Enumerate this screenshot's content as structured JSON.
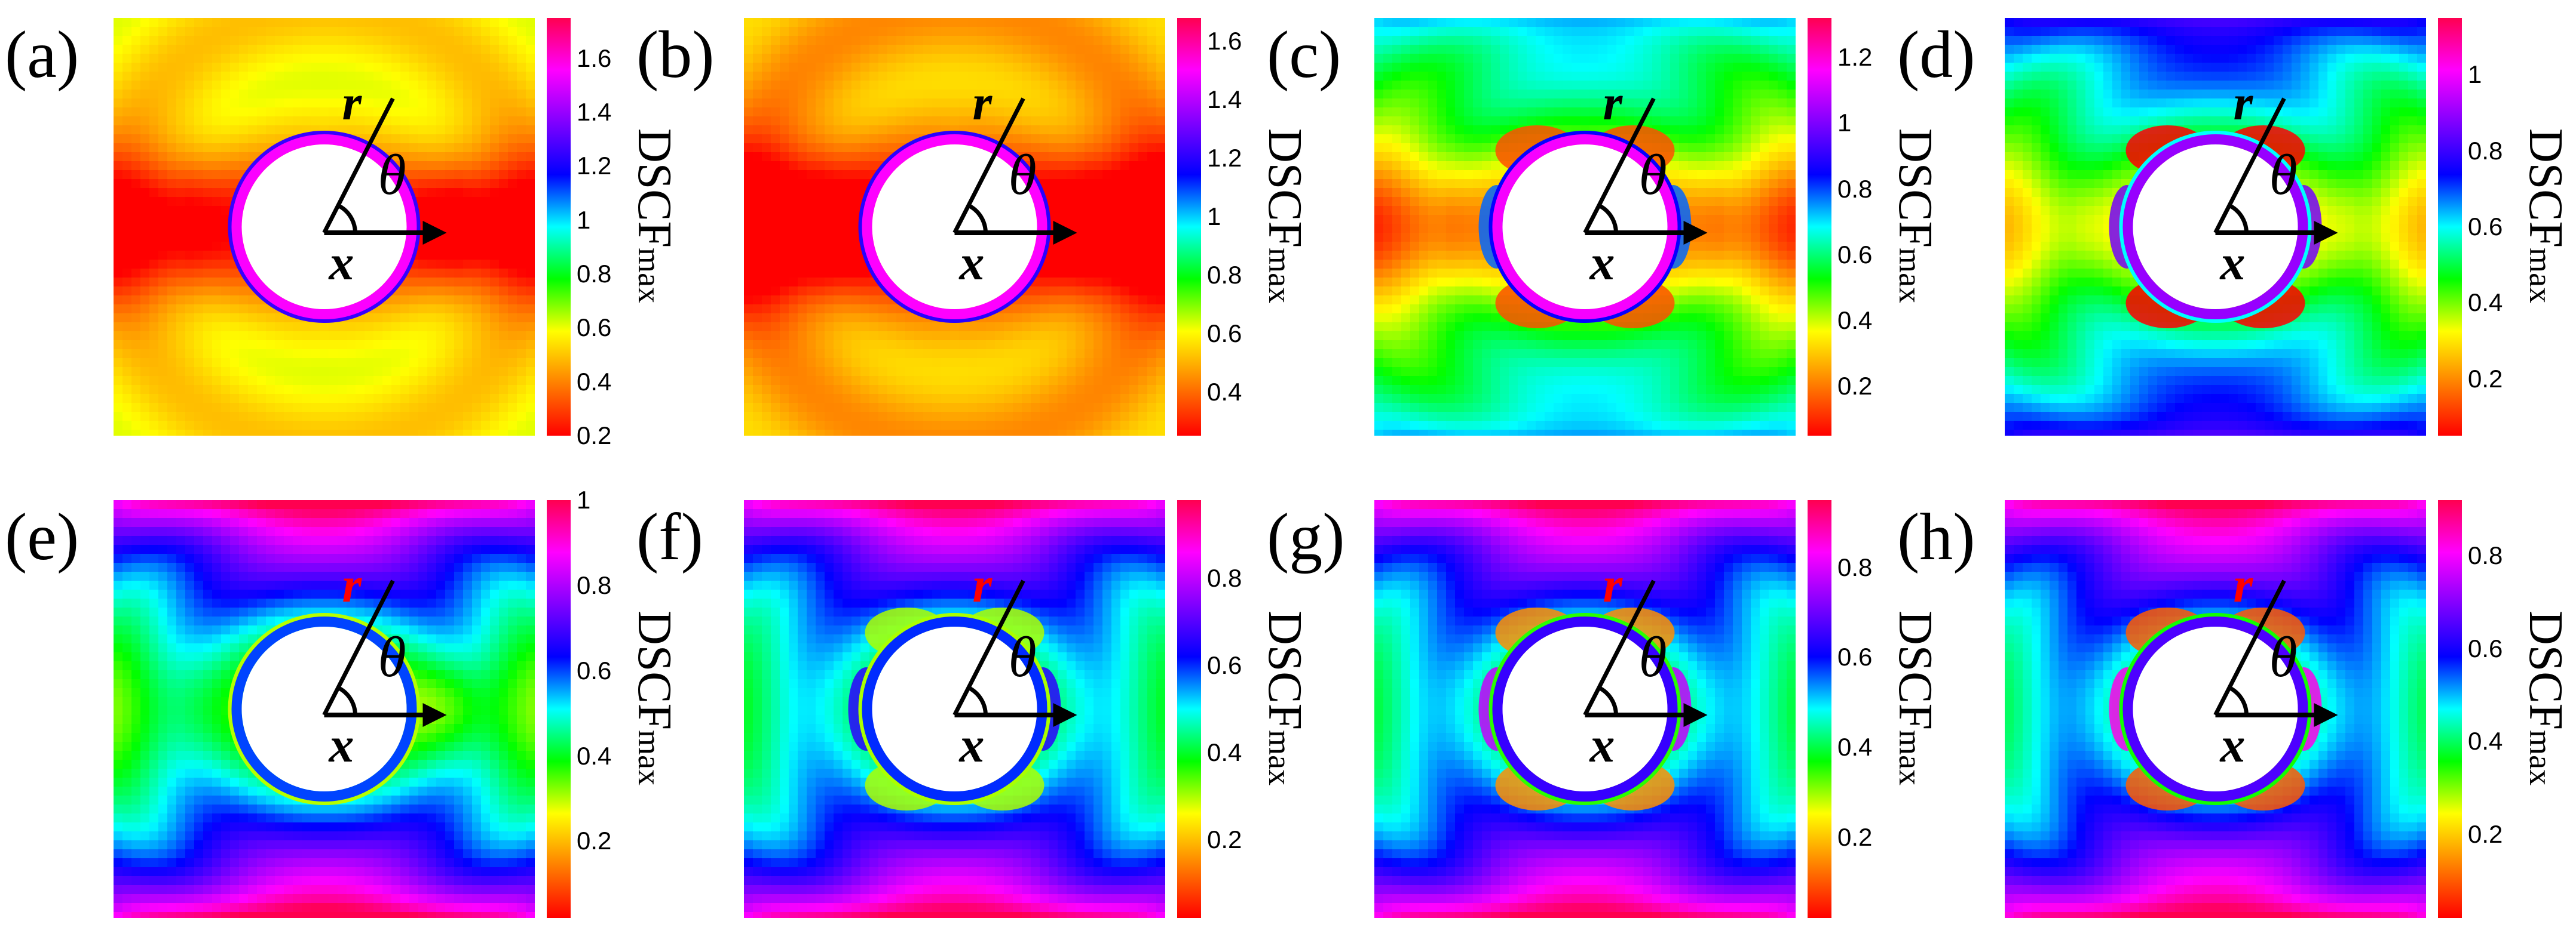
{
  "colors": {
    "colormap": [
      "#ff0000",
      "#ff7f00",
      "#ffff00",
      "#00ff00",
      "#00ffff",
      "#0000ff",
      "#8000ff",
      "#ff00ff",
      "#ff0050"
    ],
    "annotation_black": "#000000",
    "annotation_red": "#ff0000"
  },
  "chart_data": [
    {
      "type": "heatmap",
      "label": "(a)",
      "colorbar": {
        "title": "DSCF",
        "subscript": "max",
        "ticks": [
          "1.6",
          "1.4",
          "1.2",
          "1",
          "0.8",
          "0.6",
          "0.4",
          "0.2"
        ],
        "range": [
          0.2,
          1.75
        ]
      },
      "annotations": {
        "r": "r",
        "theta": "θ",
        "x": "x",
        "r_color": "black"
      },
      "field": {
        "bg": 0.55,
        "top": 0.0,
        "side": 0.45,
        "right_boost": 0.08,
        "lobes": 0.0,
        "ring": 1.55
      }
    },
    {
      "type": "heatmap",
      "label": "(b)",
      "colorbar": {
        "title": "DSCF",
        "subscript": "max",
        "ticks": [
          "1.6",
          "1.4",
          "1.2",
          "1",
          "0.8",
          "0.6",
          "0.4"
        ],
        "range": [
          0.25,
          1.68
        ]
      },
      "annotations": {
        "r": "r",
        "theta": "θ",
        "x": "x",
        "r_color": "black"
      },
      "field": {
        "bg": 0.5,
        "top": 0.0,
        "side": 0.5,
        "right_boost": 0.0,
        "lobes": 0.0,
        "ring": 1.5
      }
    },
    {
      "type": "heatmap",
      "label": "(c)",
      "colorbar": {
        "title": "DSCF",
        "subscript": "max",
        "ticks": [
          "1.2",
          "1",
          "0.8",
          "0.6",
          "0.4",
          "0.2"
        ],
        "range": [
          0.05,
          1.32
        ]
      },
      "annotations": {
        "r": "r",
        "theta": "θ",
        "x": "x",
        "r_color": "black"
      },
      "field": {
        "bg": 0.5,
        "top": 0.3,
        "side": 0.35,
        "right_boost": 0.0,
        "lobes": 0.35,
        "ring": 1.15
      }
    },
    {
      "type": "heatmap",
      "label": "(d)",
      "colorbar": {
        "title": "DSCF",
        "subscript": "max",
        "ticks": [
          "1",
          "0.8",
          "0.6",
          "0.4",
          "0.2"
        ],
        "range": [
          0.05,
          1.15
        ]
      },
      "annotations": {
        "r": "r",
        "theta": "θ",
        "x": "x",
        "r_color": "black"
      },
      "field": {
        "bg": 0.5,
        "top": 0.38,
        "side": 0.2,
        "right_boost": 0.0,
        "lobes": 0.45,
        "ring": 0.9
      }
    },
    {
      "type": "heatmap",
      "label": "(e)",
      "colorbar": {
        "title": "DSCF",
        "subscript": "max",
        "ticks": [
          "1",
          "0.8",
          "0.6",
          "0.4",
          "0.2"
        ],
        "range": [
          0.02,
          1.0
        ]
      },
      "annotations": {
        "r": "r",
        "theta": "θ",
        "x": "x",
        "r_color": "red"
      },
      "field": {
        "bg": 0.5,
        "top": 0.62,
        "side": 0.12,
        "right_boost": 0.08,
        "lobes": 0.0,
        "ring": 0.6
      }
    },
    {
      "type": "heatmap",
      "label": "(f)",
      "colorbar": {
        "title": "DSCF",
        "subscript": "max",
        "ticks": [
          "0.8",
          "0.6",
          "0.4",
          "0.2"
        ],
        "range": [
          0.02,
          0.98
        ]
      },
      "annotations": {
        "r": "r",
        "theta": "θ",
        "x": "x",
        "r_color": "red"
      },
      "field": {
        "bg": 0.5,
        "top": 0.58,
        "side": 0.05,
        "right_boost": 0.0,
        "lobes": 0.2,
        "ring": 0.6
      }
    },
    {
      "type": "heatmap",
      "label": "(g)",
      "colorbar": {
        "title": "DSCF",
        "subscript": "max",
        "ticks": [
          "0.8",
          "0.6",
          "0.4",
          "0.2"
        ],
        "range": [
          0.02,
          0.95
        ]
      },
      "annotations": {
        "r": "r",
        "theta": "θ",
        "x": "x",
        "r_color": "red"
      },
      "field": {
        "bg": 0.5,
        "top": 0.55,
        "side": 0.05,
        "right_boost": 0.0,
        "lobes": 0.35,
        "ring": 0.65
      }
    },
    {
      "type": "heatmap",
      "label": "(h)",
      "colorbar": {
        "title": "DSCF",
        "subscript": "max",
        "ticks": [
          "0.8",
          "0.6",
          "0.4",
          "0.2"
        ],
        "range": [
          0.02,
          0.92
        ]
      },
      "annotations": {
        "r": "r",
        "theta": "θ",
        "x": "x",
        "r_color": "red"
      },
      "field": {
        "bg": 0.5,
        "top": 0.52,
        "side": 0.05,
        "right_boost": 0.0,
        "lobes": 0.4,
        "ring": 0.65
      }
    }
  ]
}
